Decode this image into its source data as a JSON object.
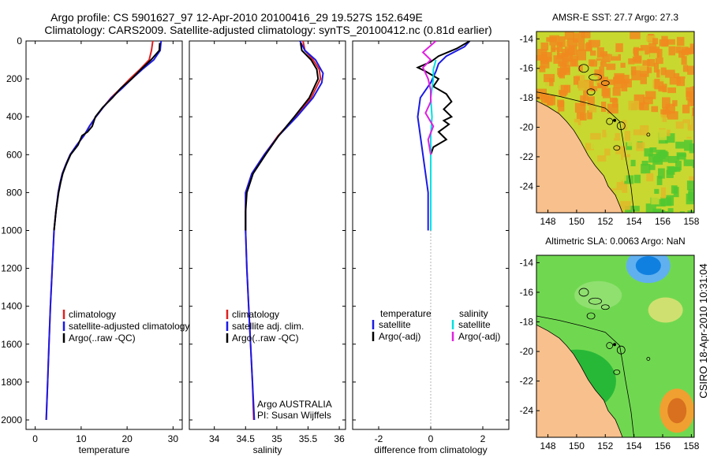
{
  "figure": {
    "title_line1": "Argo profile: CS 5901627_97 12-Apr-2010 20100416_29 19.527S 152.649E",
    "title_line2": "Climatology: CARS2009. Satellite-adjusted climatology: synTS_20100412.nc (0.81d earlier)",
    "side_note": "CSIRO 18-Apr-2010 10:31:04"
  },
  "chart_data": [
    {
      "type": "line",
      "id": "temperature",
      "xlabel": "temperature",
      "ylabel": "",
      "xlim": [
        -2,
        32
      ],
      "ylim": [
        2050,
        0
      ],
      "xticks": [
        0,
        10,
        20,
        30
      ],
      "yticks": [
        0,
        200,
        400,
        600,
        800,
        1000,
        1200,
        1400,
        1600,
        1800,
        2000
      ],
      "legend": [
        "climatology",
        "satellite-adjusted climatology",
        "Argo(..raw -QC)"
      ],
      "legend_position": "bottom-right",
      "series": [
        {
          "name": "climatology",
          "color": "#e02020",
          "points": [
            [
              25.6,
              0
            ],
            [
              25.3,
              50
            ],
            [
              24.8,
              100
            ],
            [
              22.8,
              150
            ],
            [
              20.6,
              200
            ],
            [
              18.6,
              250
            ],
            [
              16.5,
              300
            ],
            [
              14.8,
              350
            ],
            [
              13.2,
              400
            ],
            [
              11.8,
              450
            ],
            [
              10.6,
              500
            ],
            [
              9.0,
              550
            ],
            [
              7.6,
              600
            ],
            [
              6.7,
              650
            ],
            [
              5.9,
              700
            ],
            [
              5.4,
              750
            ],
            [
              5.0,
              800
            ],
            [
              4.5,
              900
            ],
            [
              4.1,
              1000
            ],
            [
              3.7,
              1200
            ],
            [
              3.3,
              1400
            ],
            [
              3.0,
              1600
            ],
            [
              2.7,
              1800
            ],
            [
              2.4,
              2000
            ]
          ]
        },
        {
          "name": "satellite-adjusted climatology",
          "color": "#1a1ae6",
          "points": [
            [
              27.4,
              0
            ],
            [
              27.2,
              50
            ],
            [
              25.8,
              100
            ],
            [
              23.3,
              150
            ],
            [
              21.0,
              200
            ],
            [
              18.9,
              250
            ],
            [
              16.6,
              300
            ],
            [
              14.8,
              350
            ],
            [
              13.2,
              400
            ],
            [
              11.8,
              450
            ],
            [
              10.6,
              500
            ],
            [
              9.0,
              550
            ],
            [
              7.6,
              600
            ],
            [
              6.7,
              650
            ],
            [
              5.9,
              700
            ],
            [
              5.4,
              750
            ],
            [
              5.0,
              800
            ],
            [
              4.5,
              900
            ],
            [
              4.1,
              1000
            ],
            [
              3.7,
              1200
            ],
            [
              3.3,
              1400
            ],
            [
              3.0,
              1600
            ],
            [
              2.7,
              1800
            ],
            [
              2.4,
              2000
            ]
          ]
        },
        {
          "name": "Argo(..raw -QC)",
          "color": "#000000",
          "points": [
            [
              27.1,
              10
            ],
            [
              27.0,
              50
            ],
            [
              25.2,
              100
            ],
            [
              23.0,
              150
            ],
            [
              21.0,
              200
            ],
            [
              18.6,
              250
            ],
            [
              16.8,
              300
            ],
            [
              14.7,
              350
            ],
            [
              13.1,
              400
            ],
            [
              12.4,
              450
            ],
            [
              11.4,
              480
            ],
            [
              10.2,
              500
            ],
            [
              9.3,
              550
            ],
            [
              7.7,
              600
            ],
            [
              6.8,
              650
            ],
            [
              6.0,
              700
            ],
            [
              5.5,
              750
            ],
            [
              5.1,
              800
            ],
            [
              4.5,
              900
            ],
            [
              4.1,
              1000
            ]
          ]
        }
      ]
    },
    {
      "type": "line",
      "id": "salinity",
      "xlabel": "salinity",
      "ylabel": "",
      "xlim": [
        33.6,
        36.1
      ],
      "ylim": [
        2050,
        0
      ],
      "xticks": [
        34,
        34.5,
        35,
        35.5,
        36
      ],
      "yticks": [
        0,
        200,
        400,
        600,
        800,
        1000,
        1200,
        1400,
        1600,
        1800,
        2000
      ],
      "legend": [
        "climatology",
        "satellite adj. clim.",
        "Argo(..raw -QC)"
      ],
      "legend_position": "bottom-right",
      "annotation_line1": "Argo AUSTRALIA",
      "annotation_line2": "PI: Susan Wijffels",
      "series": [
        {
          "name": "climatology",
          "color": "#e02020",
          "points": [
            [
              35.42,
              0
            ],
            [
              35.45,
              50
            ],
            [
              35.58,
              100
            ],
            [
              35.68,
              150
            ],
            [
              35.7,
              200
            ],
            [
              35.55,
              300
            ],
            [
              35.3,
              400
            ],
            [
              35.02,
              500
            ],
            [
              34.8,
              600
            ],
            [
              34.6,
              700
            ],
            [
              34.5,
              800
            ],
            [
              34.5,
              1000
            ],
            [
              34.52,
              1200
            ],
            [
              34.55,
              1400
            ],
            [
              34.58,
              1600
            ],
            [
              34.61,
              1800
            ],
            [
              34.63,
              2000
            ]
          ]
        },
        {
          "name": "satellite adj. clim.",
          "color": "#1a1ae6",
          "points": [
            [
              35.37,
              0
            ],
            [
              35.45,
              50
            ],
            [
              35.62,
              100
            ],
            [
              35.74,
              170
            ],
            [
              35.72,
              220
            ],
            [
              35.58,
              300
            ],
            [
              35.32,
              400
            ],
            [
              35.03,
              500
            ],
            [
              34.8,
              600
            ],
            [
              34.6,
              700
            ],
            [
              34.5,
              800
            ],
            [
              34.5,
              1000
            ],
            [
              34.52,
              1200
            ],
            [
              34.55,
              1400
            ],
            [
              34.58,
              1600
            ],
            [
              34.61,
              1800
            ],
            [
              34.64,
              2000
            ]
          ]
        },
        {
          "name": "Argo(..raw -QC)",
          "color": "#000000",
          "points": [
            [
              35.38,
              10
            ],
            [
              35.4,
              50
            ],
            [
              35.55,
              100
            ],
            [
              35.64,
              150
            ],
            [
              35.66,
              200
            ],
            [
              35.52,
              300
            ],
            [
              35.28,
              400
            ],
            [
              35.03,
              500
            ],
            [
              34.82,
              600
            ],
            [
              34.62,
              700
            ],
            [
              34.52,
              800
            ],
            [
              34.5,
              900
            ],
            [
              34.5,
              1000
            ]
          ]
        }
      ]
    },
    {
      "type": "line",
      "id": "difference",
      "xlabel": "difference from climatology",
      "ylabel": "",
      "xlim": [
        -3,
        3
      ],
      "ylim": [
        2050,
        0
      ],
      "xticks": [
        -2,
        0,
        2
      ],
      "yticks": [
        0,
        200,
        400,
        600,
        800,
        1000,
        1200,
        1400,
        1600,
        1800,
        2000
      ],
      "legend_header_temperature": "temperature",
      "legend_header_salinity": "salinity",
      "legend_temperature": [
        "satellite",
        "Argo(-adj)"
      ],
      "legend_salinity": [
        "satellite",
        "Argo(-adj)"
      ],
      "legend_position": "bottom",
      "reference_line_x": 0,
      "series": [
        {
          "name": "temperature satellite",
          "color": "#1a1ae6",
          "points": [
            [
              1.5,
              0
            ],
            [
              1.3,
              30
            ],
            [
              0.6,
              80
            ],
            [
              0.3,
              120
            ],
            [
              0.2,
              160
            ],
            [
              0.0,
              220
            ],
            [
              -0.4,
              300
            ],
            [
              -0.5,
              400
            ],
            [
              -0.4,
              500
            ],
            [
              -0.3,
              600
            ],
            [
              -0.2,
              700
            ],
            [
              -0.1,
              800
            ],
            [
              -0.1,
              900
            ],
            [
              -0.1,
              1000
            ]
          ]
        },
        {
          "name": "temperature Argo(-adj)",
          "color": "#000000",
          "points": [
            [
              1.5,
              0
            ],
            [
              1.0,
              40
            ],
            [
              0.3,
              80
            ],
            [
              0.0,
              110
            ],
            [
              -0.5,
              140
            ],
            [
              -0.2,
              160
            ],
            [
              0.3,
              200
            ],
            [
              0.1,
              240
            ],
            [
              0.6,
              280
            ],
            [
              0.8,
              320
            ],
            [
              0.5,
              360
            ],
            [
              0.8,
              400
            ],
            [
              0.5,
              420
            ],
            [
              0.7,
              440
            ],
            [
              0.3,
              480
            ],
            [
              0.6,
              520
            ],
            [
              0.1,
              560
            ],
            [
              0.0,
              600
            ]
          ]
        },
        {
          "name": "salinity satellite",
          "color": "#00e0e0",
          "points": [
            [
              0.2,
              100
            ],
            [
              0.1,
              150
            ],
            [
              0.1,
              200
            ],
            [
              0.0,
              300
            ],
            [
              0.05,
              400
            ],
            [
              0.0,
              500
            ],
            [
              0.0,
              600
            ],
            [
              0.0,
              700
            ],
            [
              0.0,
              800
            ],
            [
              0.0,
              900
            ],
            [
              0.0,
              1000
            ]
          ]
        },
        {
          "name": "salinity Argo(-adj)",
          "color": "#e020e0",
          "points": [
            [
              0.2,
              0
            ],
            [
              -0.3,
              60
            ],
            [
              0.0,
              100
            ],
            [
              -0.3,
              140
            ],
            [
              -0.1,
              200
            ],
            [
              0.0,
              260
            ],
            [
              0.0,
              320
            ],
            [
              -0.2,
              380
            ],
            [
              0.1,
              450
            ],
            [
              -0.1,
              520
            ],
            [
              0.0,
              600
            ]
          ]
        }
      ]
    },
    {
      "type": "heatmap",
      "id": "sst-map",
      "title": "AMSR-E SST: 27.7 Argo: 27.3",
      "xlim": [
        147.2,
        158.2
      ],
      "ylim": [
        -25.8,
        -13.5
      ],
      "xticks": [
        148,
        150,
        152,
        154,
        156,
        158
      ],
      "yticks": [
        -14,
        -16,
        -18,
        -20,
        -22,
        -24
      ],
      "argo_position": [
        152.649,
        -19.527
      ]
    },
    {
      "type": "heatmap",
      "id": "sla-map",
      "title": "Altimetric SLA: 0.0063 Argo: NaN",
      "xlim": [
        147.2,
        158.2
      ],
      "ylim": [
        -25.8,
        -13.5
      ],
      "xticks": [
        148,
        150,
        152,
        154,
        156,
        158
      ],
      "yticks": [
        -14,
        -16,
        -18,
        -20,
        -22,
        -24
      ],
      "argo_position": [
        152.649,
        -19.527
      ]
    }
  ],
  "colors": {
    "land": "#f8c08c",
    "sst_warm": "#f08a1e",
    "sst_mid": "#c8d830",
    "sst_cool": "#50c830",
    "sla_high": "#f0a030",
    "sla_mid": "#70d850",
    "sla_low": "#1080e0"
  }
}
